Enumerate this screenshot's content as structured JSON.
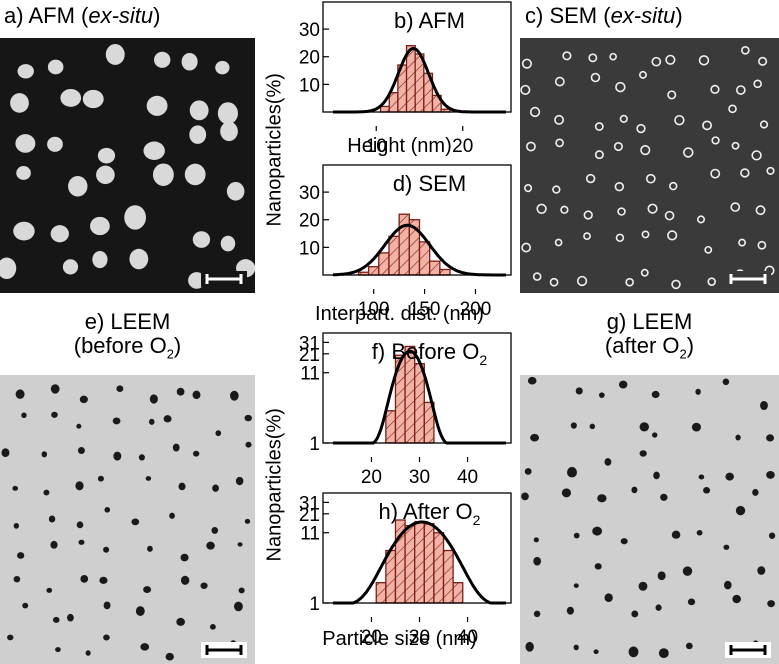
{
  "labels": {
    "a": "a) AFM (",
    "a_em": "ex-situ",
    "a_end": ")",
    "c": "c) SEM (",
    "c_em": "ex-situ",
    "c_end": ")",
    "e1": "e) LEEM",
    "e2_pre": "(before O",
    "e2_sub": "2",
    "e2_post": ")",
    "g1": "g) LEEM",
    "g2_pre": "(after O",
    "g2_sub": "2",
    "g2_post": ")",
    "ylabel_top": "Nanoparticles(%)",
    "ylabel_bottom": "Nanoparticles(%)"
  },
  "colors": {
    "bar_fill": "#f2b3a6",
    "bar_edge": "#7a1e16",
    "fit_line": "#000000",
    "afm_bg": "#161616",
    "afm_dot": "#d9d9d9",
    "sem_bg": "#3a3a3a",
    "sem_dot": "#f0f0f0",
    "leem_bg": "#cfcfcf",
    "leem_dot": "#1a1a1a"
  },
  "chart_data": [
    {
      "id": "b",
      "type": "bar",
      "title": "b) AFM",
      "xlabel": "Height (nm)",
      "xlim": [
        5,
        25
      ],
      "ylim": [
        0,
        38
      ],
      "xticks": [
        10,
        20
      ],
      "yticks": [
        10,
        20,
        30
      ],
      "x": [
        11,
        12,
        13,
        14,
        15,
        16,
        17,
        18
      ],
      "values": [
        2,
        7,
        17,
        24,
        21,
        14,
        6,
        1
      ],
      "bin_width": 1,
      "fit": {
        "type": "gaussian",
        "mean": 14.3,
        "sd": 1.75,
        "peak": 23
      }
    },
    {
      "id": "d",
      "type": "bar",
      "title": "d) SEM",
      "xlabel": "Interpart. dist. (nm)",
      "xlim": [
        60,
        230
      ],
      "ylim": [
        0,
        38
      ],
      "xticks": [
        100,
        150,
        200
      ],
      "yticks": [
        10,
        20,
        30
      ],
      "x": [
        90,
        100,
        110,
        120,
        130,
        140,
        150,
        160,
        170
      ],
      "values": [
        1,
        3,
        8,
        14,
        22,
        20,
        12,
        5,
        2
      ],
      "bin_width": 10,
      "fit": {
        "type": "gaussian",
        "mean": 133,
        "sd": 22,
        "peak": 18
      }
    },
    {
      "id": "f",
      "type": "bar",
      "title": "f) Before O",
      "title_sub": "2",
      "xlabel": "",
      "xlim": [
        12,
        48
      ],
      "ylim": [
        1,
        36
      ],
      "ylog": true,
      "xticks": [
        20,
        30,
        40
      ],
      "yticks": [
        1,
        11,
        21,
        31
      ],
      "x": [
        24,
        26,
        28,
        30,
        32
      ],
      "values": [
        3,
        20,
        27,
        15,
        4
      ],
      "bin_width": 2,
      "fit": {
        "type": "gaussian",
        "mean": 28,
        "sd": 2.3,
        "peak": 22
      }
    },
    {
      "id": "h",
      "type": "bar",
      "title": "h) After O",
      "title_sub": "2",
      "xlabel": "Particle size (nm)",
      "xlim": [
        12,
        48
      ],
      "ylim": [
        1,
        36
      ],
      "ylog": true,
      "xticks": [
        20,
        30,
        40
      ],
      "yticks": [
        1,
        11,
        21,
        31
      ],
      "x": [
        22,
        24,
        26,
        28,
        30,
        32,
        34,
        36,
        38
      ],
      "values": [
        2,
        6,
        17,
        14,
        16,
        15,
        11,
        6,
        2
      ],
      "bin_width": 2,
      "fit": {
        "type": "gaussian",
        "mean": 30.5,
        "sd": 4.5,
        "peak": 15
      }
    }
  ]
}
